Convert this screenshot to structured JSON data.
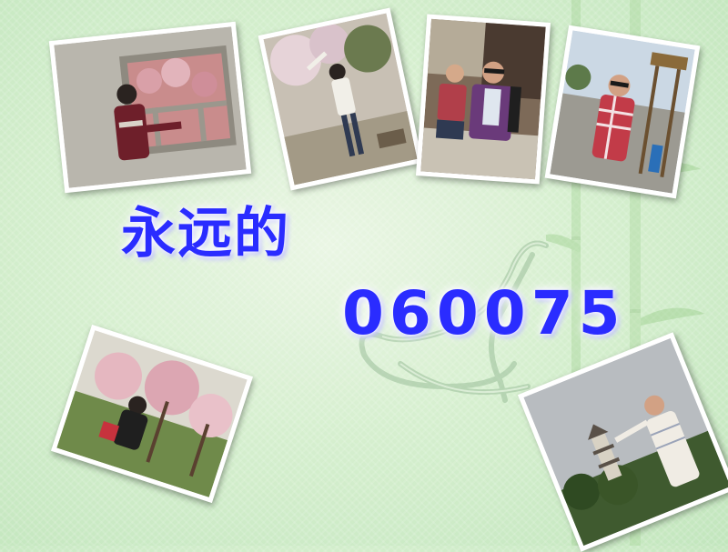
{
  "slide": {
    "title_line1": "永远的",
    "title_line2": "060075",
    "colors": {
      "title_text": "#2a2cff",
      "title_glow": "#ffffff",
      "background": "#d6efcf"
    }
  },
  "photos": [
    {
      "name": "photo-girl-at-lattice-window"
    },
    {
      "name": "photo-girl-under-blossoms"
    },
    {
      "name": "photo-two-guys-seated"
    },
    {
      "name": "photo-guy-in-plaid-shirt"
    },
    {
      "name": "photo-girl-in-peach-orchard"
    },
    {
      "name": "photo-guy-pointing-at-pagoda"
    }
  ]
}
